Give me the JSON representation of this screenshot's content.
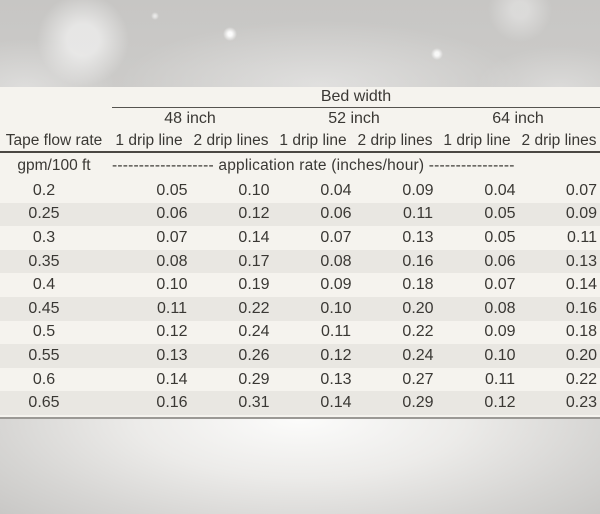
{
  "colors": {
    "panel_bg": "#f5f3ee",
    "stripe_bg": "#e9e7e2",
    "text": "#3a3834",
    "rule_thin": "#55534f",
    "rule_thick": "#4a4843",
    "background_gray": "#c8c7c5"
  },
  "chart_data": {
    "type": "table",
    "title": "Bed width",
    "row_axis_label": "Tape flow rate",
    "row_axis_unit": "gpm/100 ft",
    "group_headers": [
      "48 inch",
      "52 inch",
      "64 inch"
    ],
    "column_headers": [
      "1 drip line",
      "2 drip lines",
      "1 drip line",
      "2 drip lines",
      "1 drip line",
      "2 drip lines"
    ],
    "unit_note_left_dashes": "-------------------",
    "unit_note_text": "application rate  (inches/hour)",
    "unit_note_right_dashes": "----------------",
    "rows": [
      {
        "flow_rate": "0.2",
        "values": [
          "0.05",
          "0.10",
          "0.04",
          "0.09",
          "0.04",
          "0.07"
        ]
      },
      {
        "flow_rate": "0.25",
        "values": [
          "0.06",
          "0.12",
          "0.06",
          "0.11",
          "0.05",
          "0.09"
        ]
      },
      {
        "flow_rate": "0.3",
        "values": [
          "0.07",
          "0.14",
          "0.07",
          "0.13",
          "0.05",
          "0.11"
        ]
      },
      {
        "flow_rate": "0.35",
        "values": [
          "0.08",
          "0.17",
          "0.08",
          "0.16",
          "0.06",
          "0.13"
        ]
      },
      {
        "flow_rate": "0.4",
        "values": [
          "0.10",
          "0.19",
          "0.09",
          "0.18",
          "0.07",
          "0.14"
        ]
      },
      {
        "flow_rate": "0.45",
        "values": [
          "0.11",
          "0.22",
          "0.10",
          "0.20",
          "0.08",
          "0.16"
        ]
      },
      {
        "flow_rate": "0.5",
        "values": [
          "0.12",
          "0.24",
          "0.11",
          "0.22",
          "0.09",
          "0.18"
        ]
      },
      {
        "flow_rate": "0.55",
        "values": [
          "0.13",
          "0.26",
          "0.12",
          "0.24",
          "0.10",
          "0.20"
        ]
      },
      {
        "flow_rate": "0.6",
        "values": [
          "0.14",
          "0.29",
          "0.13",
          "0.27",
          "0.11",
          "0.22"
        ]
      },
      {
        "flow_rate": "0.65",
        "values": [
          "0.16",
          "0.31",
          "0.14",
          "0.29",
          "0.12",
          "0.23"
        ]
      }
    ]
  }
}
